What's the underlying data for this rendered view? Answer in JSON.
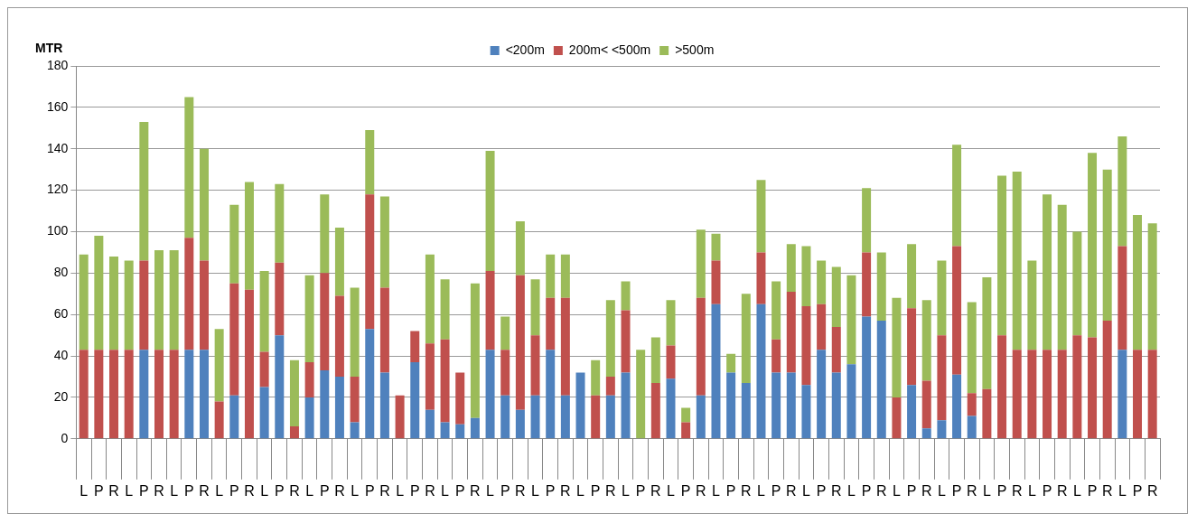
{
  "chart_data": {
    "type": "bar",
    "stacked": true,
    "ylabel": "MTR",
    "legend": "top",
    "grid": "y",
    "categories": [
      "L",
      "P",
      "R",
      "L",
      "P",
      "R",
      "L",
      "P",
      "R",
      "L",
      "P",
      "R",
      "L",
      "P",
      "R",
      "L",
      "P",
      "R",
      "L",
      "P",
      "R",
      "L",
      "P",
      "R",
      "L",
      "P",
      "R",
      "L",
      "P",
      "R",
      "L",
      "P",
      "R",
      "L",
      "P",
      "R",
      "L",
      "P",
      "R",
      "L",
      "P",
      "R",
      "L",
      "P",
      "R",
      "L",
      "P",
      "R",
      "L",
      "P",
      "R",
      "L",
      "P",
      "R",
      "L",
      "P",
      "R",
      "L",
      "P",
      "R",
      "L",
      "P",
      "R",
      "L",
      "P",
      "R",
      "L",
      "P",
      "R",
      "L",
      "P",
      "R"
    ],
    "ylim": [
      0,
      180
    ],
    "yticks": [
      0,
      20,
      40,
      60,
      80,
      100,
      120,
      140,
      160,
      180
    ],
    "series": [
      {
        "name": "<200m",
        "color": "#4f81bd",
        "values": [
          0,
          0,
          0,
          0,
          43,
          0,
          0,
          43,
          43,
          0,
          21,
          0,
          25,
          50,
          0,
          20,
          33,
          30,
          8,
          53,
          32,
          0,
          37,
          14,
          8,
          7,
          10,
          43,
          21,
          14,
          21,
          43,
          21,
          32,
          0,
          21,
          32,
          0,
          0,
          29,
          0,
          21,
          65,
          32,
          27,
          65,
          32,
          32,
          26,
          43,
          32,
          36,
          59,
          57,
          0,
          26,
          5,
          9,
          31,
          11,
          0,
          0,
          0,
          0,
          0,
          0,
          0,
          0,
          0,
          43,
          0,
          0
        ]
      },
      {
        "name": "200m< <500m",
        "color": "#c0504d",
        "values": [
          43,
          43,
          43,
          43,
          43,
          43,
          43,
          54,
          43,
          18,
          54,
          72,
          17,
          35,
          6,
          17,
          47,
          39,
          22,
          65,
          41,
          21,
          15,
          32,
          40,
          25,
          0,
          38,
          22,
          65,
          29,
          25,
          47,
          0,
          21,
          9,
          30,
          0,
          27,
          16,
          8,
          47,
          21,
          0,
          0,
          25,
          16,
          39,
          38,
          22,
          22,
          0,
          31,
          0,
          20,
          37,
          23,
          41,
          62,
          11,
          24,
          50,
          43,
          43,
          43,
          43,
          50,
          49,
          57,
          50,
          43,
          43
        ]
      },
      {
        "name": ">500m",
        "color": "#9bbb59",
        "values": [
          46,
          55,
          45,
          43,
          67,
          48,
          48,
          68,
          54,
          35,
          38,
          52,
          39,
          38,
          32,
          42,
          38,
          33,
          43,
          31,
          44,
          0,
          0,
          43,
          29,
          0,
          65,
          58,
          16,
          26,
          27,
          21,
          21,
          0,
          17,
          37,
          14,
          43,
          22,
          22,
          7,
          33,
          13,
          9,
          43,
          35,
          28,
          23,
          29,
          21,
          29,
          43,
          31,
          33,
          48,
          31,
          39,
          36,
          49,
          44,
          54,
          77,
          86,
          43,
          75,
          70,
          50,
          89,
          73,
          53,
          65,
          61
        ]
      }
    ]
  }
}
